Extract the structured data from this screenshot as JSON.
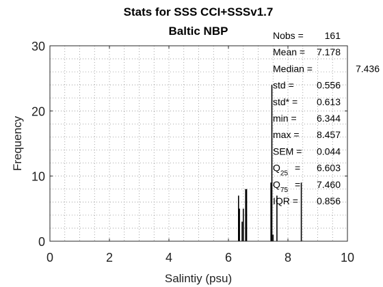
{
  "chart_data": {
    "type": "bar",
    "title": [
      "Stats for SSS CCI+SSSv1.7",
      "Baltic NBP"
    ],
    "xlabel": "Salintiy (psu)",
    "ylabel": "Frequency",
    "xlim": [
      0,
      10
    ],
    "ylim": [
      0,
      30
    ],
    "xticks": [
      "0",
      "2",
      "4",
      "6",
      "8",
      "10"
    ],
    "yticks": [
      "0",
      "10",
      "20",
      "30"
    ],
    "grid": true,
    "bar_color": "#000000",
    "bars": [
      {
        "x": 6.34,
        "y": 7
      },
      {
        "x": 6.37,
        "y": 5
      },
      {
        "x": 6.46,
        "y": 3
      },
      {
        "x": 6.5,
        "y": 5
      },
      {
        "x": 6.58,
        "y": 8
      },
      {
        "x": 6.61,
        "y": 8
      },
      {
        "x": 7.43,
        "y": 9
      },
      {
        "x": 7.46,
        "y": 24
      },
      {
        "x": 7.5,
        "y": 1
      },
      {
        "x": 7.63,
        "y": 7
      },
      {
        "x": 8.45,
        "y": 9
      }
    ],
    "stats": [
      {
        "label": "Nobs =",
        "sub": "",
        "eq": "",
        "value": "161"
      },
      {
        "label": "Mean =",
        "sub": "",
        "eq": "",
        "value": "7.178"
      },
      {
        "label": "Median =",
        "sub": "",
        "eq": "",
        "value": "7.436"
      },
      {
        "label": "std =",
        "sub": "",
        "eq": "",
        "value": "0.556"
      },
      {
        "label": "std* =",
        "sub": "",
        "eq": "",
        "value": "0.613"
      },
      {
        "label": "min =",
        "sub": "",
        "eq": "",
        "value": "6.344"
      },
      {
        "label": "max =",
        "sub": "",
        "eq": "",
        "value": "8.457"
      },
      {
        "label": "SEM =",
        "sub": "",
        "eq": "",
        "value": "0.044"
      },
      {
        "label": "Q",
        "sub": "25",
        "eq": "=",
        "value": "6.603"
      },
      {
        "label": "Q",
        "sub": "75",
        "eq": "=",
        "value": "7.460"
      },
      {
        "label": "IQR =",
        "sub": "",
        "eq": "",
        "value": "0.856"
      }
    ]
  }
}
